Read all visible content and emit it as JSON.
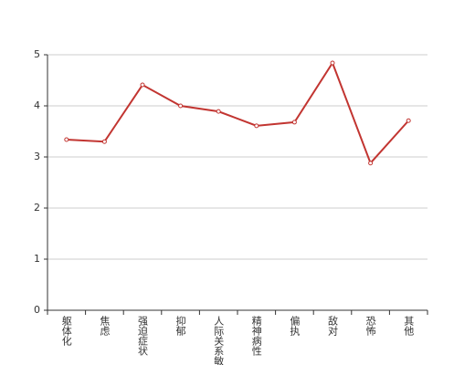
{
  "chart_data": {
    "type": "line",
    "categories": [
      "躯体化",
      "焦虑",
      "强迫症状",
      "抑郁",
      "人际关系敏感",
      "精神病性",
      "偏执",
      "敌对",
      "恐怖",
      "其他"
    ],
    "values": [
      3.34,
      3.3,
      4.41,
      4.0,
      3.89,
      3.61,
      3.68,
      4.84,
      2.88,
      3.71
    ],
    "color": "#c23531",
    "ylim": [
      0,
      5
    ],
    "yticks": [
      0,
      1,
      2,
      3,
      4,
      5
    ],
    "grid": true
  }
}
